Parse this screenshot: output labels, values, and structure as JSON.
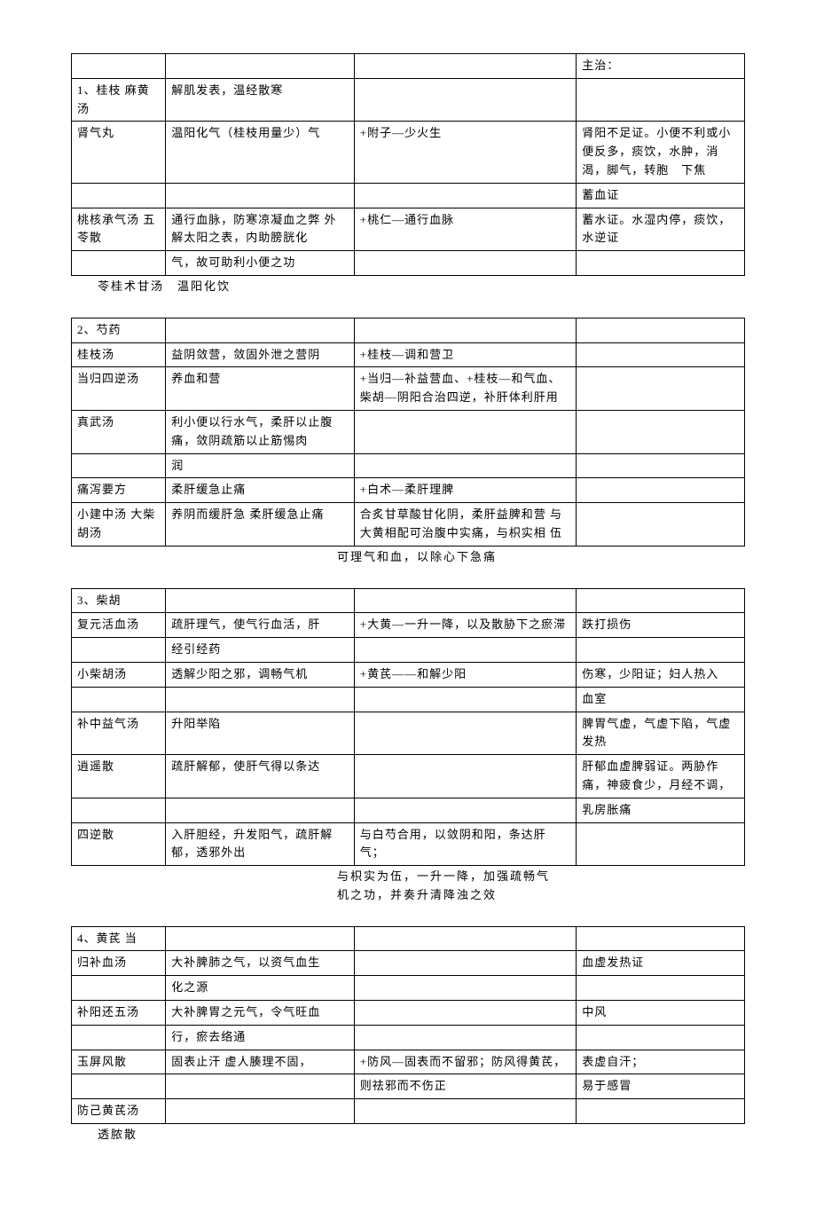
{
  "tables": [
    {
      "rows": [
        [
          "",
          "",
          "",
          "主治："
        ],
        [
          "1、桂枝\n麻黄汤",
          "解肌发表，温经散寒",
          "",
          ""
        ],
        [
          "肾气丸",
          "温阳化气（桂枝用量少）气",
          "+附子—少火生",
          "肾阳不足证。小便不利或小便反多，痰饮，水肿，消渴，脚气，转胞　下焦"
        ],
        [
          "",
          "",
          "",
          "蓄血证"
        ],
        [
          "桃核承气汤\n五苓散",
          "通行血脉，防寒凉凝血之弊\n外解太阳之表，内助膀胱化",
          "+桃仁—通行血脉",
          "蓄水证。水湿内停，痰饮，水逆证"
        ],
        [
          "",
          "气，故可助利小便之功",
          "",
          ""
        ]
      ],
      "trailing": "苓桂术甘汤　温阳化饮"
    },
    {
      "rows": [
        [
          "2、芍药",
          "",
          "",
          ""
        ],
        [
          "桂枝汤",
          "益阴敛营，敛固外泄之营阴",
          "+桂枝—调和营卫",
          ""
        ],
        [
          "当归四逆汤",
          "养血和营",
          "+当归—补益营血、+桂枝—和气血、柴胡—阴阳合治四逆，补肝体利肝用",
          ""
        ],
        [
          "真武汤",
          "利小便以行水气，柔肝以止腹痛，敛阴疏筋以止筋惕肉",
          "",
          ""
        ],
        [
          "",
          "润",
          "",
          ""
        ],
        [
          "痛泻要方",
          "柔肝缓急止痛",
          "+白术—柔肝理脾",
          ""
        ],
        [
          "小建中汤\n大柴胡汤",
          "养阴而缓肝急\n柔肝缓急止痛",
          "合炙甘草酸甘化阴，柔肝益脾和营 与大黄相配可治腹中实痛，与枳实相 伍",
          ""
        ]
      ],
      "trailing": "　　　　　　　　　　　　　　　　　　可理气和血，以除心下急痛"
    },
    {
      "rows": [
        [
          "3、柴胡",
          "",
          "",
          ""
        ],
        [
          "复元活血汤",
          "疏肝理气，使气行血活，肝",
          "+大黄—一升一降，以及散胁下之瘀滞",
          "跌打损伤"
        ],
        [
          "",
          "经引经药",
          "",
          ""
        ],
        [
          "小柴胡汤",
          "透解少阳之邪，调畅气机",
          "+黄芪——和解少阳",
          "伤寒，少阳证；妇人热入"
        ],
        [
          "",
          "",
          "",
          "血室"
        ],
        [
          "补中益气汤",
          "升阳举陷",
          "",
          "脾胃气虚，气虚下陷，气虚发热"
        ],
        [
          "逍遥散",
          "疏肝解郁，使肝气得以条达",
          "",
          "肝郁血虚脾弱证。两胁作痛，神疲食少，月经不调，"
        ],
        [
          "",
          "",
          "",
          "乳房胀痛"
        ],
        [
          "四逆散",
          "入肝胆经，升发阳气，疏肝解郁，透邪外出",
          "与白芍合用，以敛阴和阳，条达肝气；",
          ""
        ]
      ],
      "trailing": "　　　　　　　　　　　　　　　　　　与枳实为伍，一升一降，加强疏畅气\n　　　　　　　　　　　　　　　　　　机之功，并奏升清降浊之效"
    },
    {
      "rows": [
        [
          "4、黄芪 当",
          "",
          "",
          ""
        ],
        [
          "归补血汤",
          "大补脾肺之气，以资气血生",
          "",
          "血虚发热证"
        ],
        [
          "",
          "化之源",
          "",
          ""
        ],
        [
          "补阳还五汤",
          "大补脾胃之元气，令气旺血",
          "",
          "中风"
        ],
        [
          "",
          "行，瘀去络通",
          "",
          ""
        ],
        [
          "玉屏风散",
          "固表止汗\n虚人腠理不固，",
          "+防风—固表而不留邪；防风得黄芪，",
          "表虚自汗；"
        ],
        [
          "",
          "",
          "则祛邪而不伤正",
          "易于感冒"
        ],
        [
          "防己黄芪汤",
          "",
          "",
          ""
        ]
      ],
      "trailing": "透脓散"
    }
  ]
}
